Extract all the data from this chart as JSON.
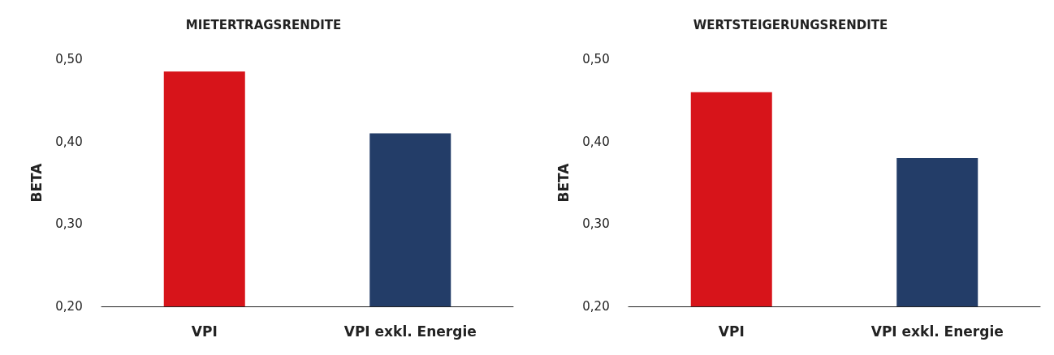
{
  "chart_data": [
    {
      "type": "bar",
      "title": "MIETERTRAGSRENDITE",
      "ylabel": "BETA",
      "categories": [
        "VPI",
        "VPI exkl. Energie"
      ],
      "values": [
        0.485,
        0.41
      ],
      "colors": [
        "#d7141a",
        "#233d68"
      ],
      "ylim": [
        0.2,
        0.5
      ],
      "yticks": [
        {
          "value": 0.2,
          "label": "0,20"
        },
        {
          "value": 0.3,
          "label": "0,30"
        },
        {
          "value": 0.4,
          "label": "0,40"
        },
        {
          "value": 0.5,
          "label": "0,50"
        }
      ],
      "grid": false
    },
    {
      "type": "bar",
      "title": "WERTSTEIGERUNGSRENDITE",
      "ylabel": "BETA",
      "categories": [
        "VPI",
        "VPI exkl. Energie"
      ],
      "values": [
        0.46,
        0.38
      ],
      "colors": [
        "#d7141a",
        "#233d68"
      ],
      "ylim": [
        0.2,
        0.5
      ],
      "yticks": [
        {
          "value": 0.2,
          "label": "0,20"
        },
        {
          "value": 0.3,
          "label": "0,30"
        },
        {
          "value": 0.4,
          "label": "0,40"
        },
        {
          "value": 0.5,
          "label": "0,50"
        }
      ],
      "grid": false
    }
  ]
}
